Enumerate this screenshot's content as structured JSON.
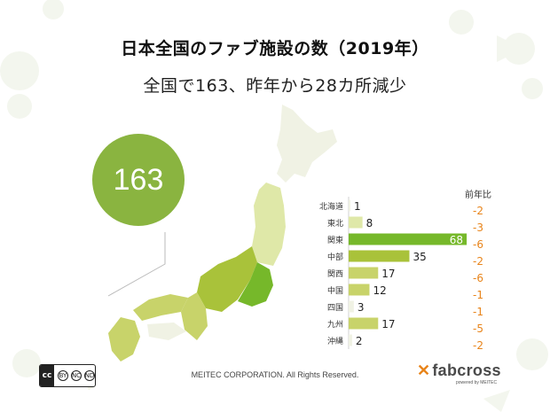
{
  "title": "日本全国のファブ施設の数（2019年）",
  "subtitle": "全国で163、昨年から28カ所減少",
  "total": "163",
  "footer": "MEITEC CORPORATION. All Rights Reserved.",
  "logo": {
    "mark": "✕",
    "name": "fabcross",
    "tagline": "powered by MEITEC"
  },
  "license": {
    "badge": "cc",
    "icons": [
      "BY",
      "NC",
      "ND"
    ]
  },
  "colors": {
    "kanto": "#76b82a",
    "chubu": "#a9c23a",
    "kinki_kyushu": "#c8d36a",
    "light": "#dfe8a8",
    "pale": "#f0f2e4",
    "bubble": "#8ab440",
    "change": "#e8841a"
  },
  "chart_data": {
    "type": "bar",
    "categories": [
      "北海道",
      "東北",
      "関東",
      "中部",
      "関西",
      "中国",
      "四国",
      "九州",
      "沖縄"
    ],
    "values": [
      1,
      8,
      68,
      35,
      17,
      12,
      3,
      17,
      2
    ],
    "value_labels": [
      "1",
      "8",
      "68",
      "35",
      "17",
      "12",
      "3",
      "17",
      "2"
    ],
    "change_header": "前年比",
    "change": [
      "-2",
      "-3",
      "-6",
      "-2",
      "-6",
      "-1",
      "-1",
      "-5",
      "-2"
    ],
    "bar_colors": [
      "#f0f2e4",
      "#dfe8a8",
      "#76b82a",
      "#a9c23a",
      "#c8d36a",
      "#c8d36a",
      "#f0f2e4",
      "#c8d36a",
      "#f0f2e4"
    ],
    "xlim": [
      0,
      70
    ]
  }
}
